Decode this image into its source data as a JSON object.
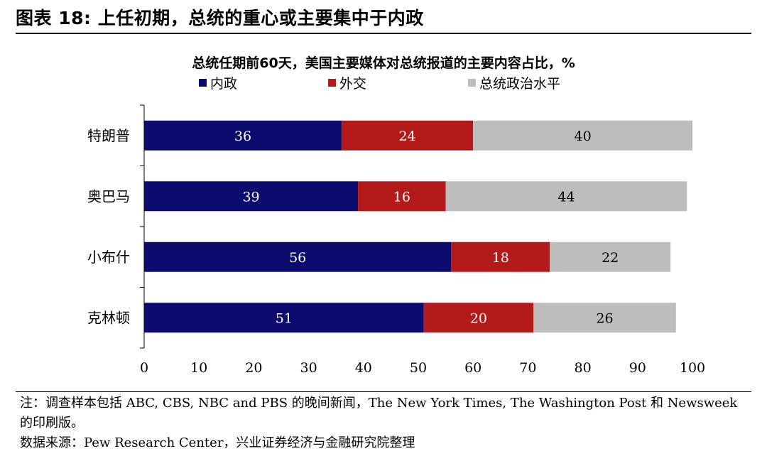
{
  "figure": {
    "title": "图表 18:  上任初期，总统的重心或主要集中于内政"
  },
  "chart_data": {
    "type": "bar",
    "orientation": "horizontal",
    "stacked": true,
    "title": "总统任期前60天，美国主要媒体对总统报道的主要内容占比，%",
    "categories": [
      "特朗普",
      "奥巴马",
      "小布什",
      "克林顿"
    ],
    "series": [
      {
        "name": "内政",
        "color": "#0c0c6e",
        "values": [
          36,
          39,
          56,
          51
        ]
      },
      {
        "name": "外交",
        "color": "#b31b1b",
        "values": [
          24,
          16,
          18,
          20
        ]
      },
      {
        "name": "总统政治水平",
        "color": "#bdbdbd",
        "values": [
          40,
          44,
          22,
          26
        ]
      }
    ],
    "xlim": [
      0,
      100
    ],
    "xticks": [
      0,
      10,
      20,
      30,
      40,
      50,
      60,
      70,
      80,
      90,
      100
    ],
    "xlabel": "",
    "ylabel": "",
    "legend_position": "top",
    "grid": false
  },
  "notes": {
    "note": "注：调查样本包括 ABC, CBS, NBC and PBS 的晚间新闻，The New York Times, The Washington Post 和 Newsweek 的印刷版。",
    "source": "数据来源：Pew Research Center，兴业证券经济与金融研究院整理"
  }
}
